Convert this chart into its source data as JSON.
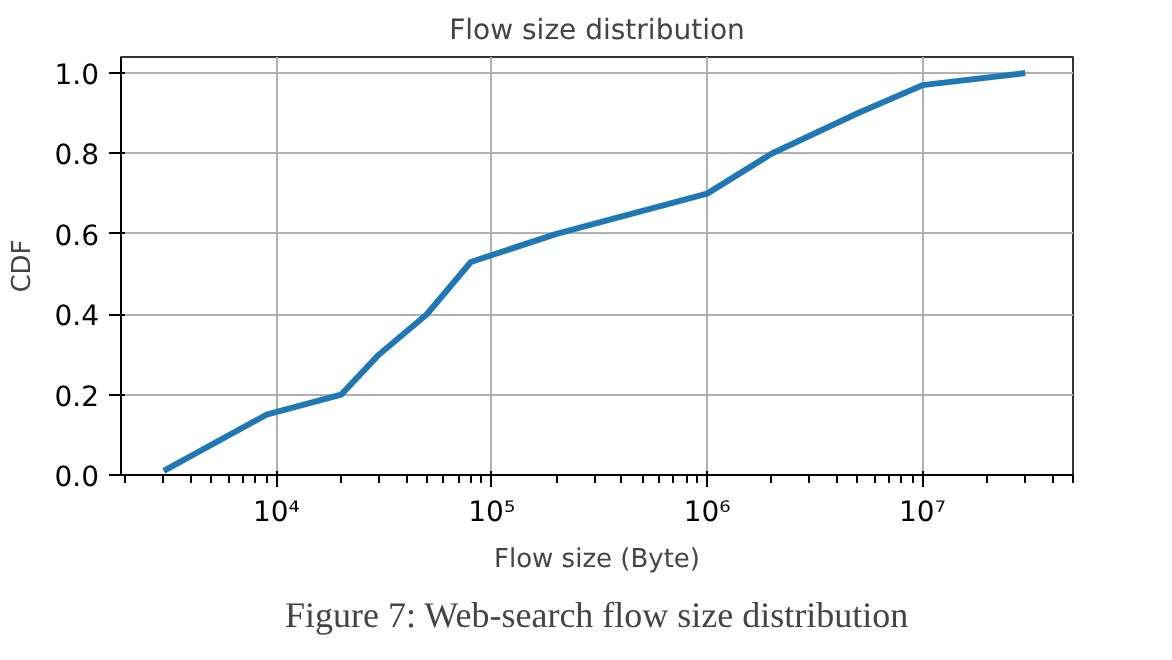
{
  "chart_data": {
    "type": "line",
    "title": "Flow size distribution",
    "xlabel": "Flow size (Byte)",
    "ylabel": "CDF",
    "log": "x",
    "grid": true,
    "x": [
      3000,
      9000,
      20000,
      30000,
      50000,
      80000,
      200000,
      1000000,
      2000000,
      5000000,
      10000000,
      30000000
    ],
    "series": [
      {
        "color": "#1f77b4",
        "values": [
          0.01,
          0.15,
          0.2,
          0.3,
          0.4,
          0.53,
          0.6,
          0.7,
          0.8,
          0.9,
          0.97,
          1.0
        ]
      }
    ],
    "xlim": [
      1900,
      50000000
    ],
    "ylim": [
      0,
      1.04
    ],
    "xticks": [
      {
        "value": 10000,
        "label": "10⁴"
      },
      {
        "value": 100000,
        "label": "10⁵"
      },
      {
        "value": 1000000,
        "label": "10⁶"
      },
      {
        "value": 10000000,
        "label": "10⁷"
      }
    ],
    "yticks": [
      {
        "value": 0,
        "label": "0.0"
      },
      {
        "value": 0.2,
        "label": "0.2"
      },
      {
        "value": 0.4,
        "label": "0.4"
      },
      {
        "value": 0.6,
        "label": "0.6"
      },
      {
        "value": 0.8,
        "label": "0.8"
      },
      {
        "value": 1.0,
        "label": "1.0"
      }
    ],
    "annotations": [
      "Figure 7: Web-search flow size distribution"
    ]
  }
}
